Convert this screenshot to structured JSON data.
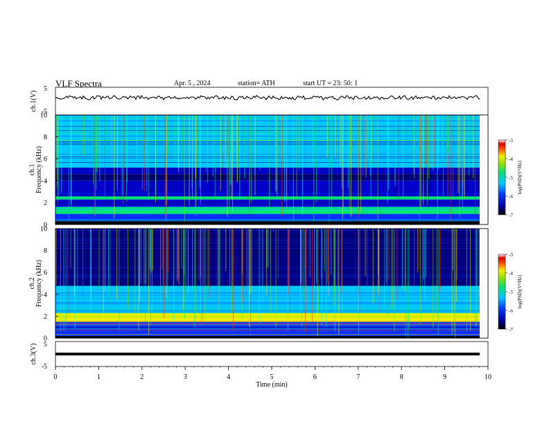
{
  "header": {
    "title": "VLF Spectra",
    "date": "Apr. 5 , 2024",
    "station": "station= ATH",
    "start": "start UT = 23: 50: 1"
  },
  "chart_data": [
    {
      "type": "line",
      "panel": "ch1-waveform",
      "ylabel": "ch.1(V)",
      "yticks": [
        "5",
        "-5"
      ],
      "ylim": [
        -5,
        5
      ],
      "trace_level": 0,
      "color": "#000000"
    },
    {
      "type": "heatmap",
      "panel": "ch1-spectrogram",
      "ylabel_line1": "ch.1",
      "ylabel_line2": "Frequency (kHz)",
      "yticks": [
        "0",
        "2",
        "4",
        "6",
        "8",
        "10"
      ],
      "ylim": [
        0,
        10
      ],
      "colorbar": {
        "label": "log(PSD)(V²/Hz)",
        "ticks": [
          "-3",
          "-4",
          "-5",
          "-6",
          "-7"
        ],
        "range": [
          -7,
          -3
        ]
      },
      "bands_khz": [
        {
          "range": [
            0,
            0.3
          ],
          "level": "black"
        },
        {
          "range": [
            0.3,
            1.0
          ],
          "level": "mixed"
        },
        {
          "range": [
            1.0,
            1.6
          ],
          "level": "cyan-green"
        },
        {
          "range": [
            1.6,
            2.3
          ],
          "level": "blue"
        },
        {
          "range": [
            2.3,
            2.6
          ],
          "level": "cyan-green"
        },
        {
          "range": [
            2.6,
            4.0
          ],
          "level": "blue"
        },
        {
          "range": [
            4.0,
            4.6
          ],
          "level": "dark-blue"
        },
        {
          "range": [
            4.6,
            5.2
          ],
          "level": "blue"
        },
        {
          "range": [
            5.2,
            10.0
          ],
          "level": "mixed-bright"
        }
      ]
    },
    {
      "type": "heatmap",
      "panel": "ch2-spectrogram",
      "ylabel_line1": "ch.2",
      "ylabel_line2": "Frequency (kHz)",
      "yticks": [
        "0",
        "2",
        "4",
        "6",
        "8",
        "10"
      ],
      "ylim": [
        0,
        10
      ],
      "colorbar": {
        "label": "log(PSD)(V²/Hz)",
        "ticks": [
          "-3",
          "-4",
          "-5",
          "-6",
          "-7"
        ],
        "range": [
          -7,
          -3
        ]
      },
      "bands_khz": [
        {
          "range": [
            0,
            0.2
          ],
          "level": "black"
        },
        {
          "range": [
            0.2,
            1.5
          ],
          "level": "mixed"
        },
        {
          "range": [
            1.5,
            2.3
          ],
          "level": "yellow-green"
        },
        {
          "range": [
            2.3,
            4.3
          ],
          "level": "cyan-blue"
        },
        {
          "range": [
            4.3,
            4.8
          ],
          "level": "cyan"
        },
        {
          "range": [
            4.8,
            10.0
          ],
          "level": "dark-blue"
        }
      ]
    },
    {
      "type": "line",
      "panel": "ch3-waveform",
      "ylabel": "ch.3(V)",
      "yticks": [
        "5",
        "-5"
      ],
      "ylim": [
        -5,
        5
      ],
      "trace_level": -1,
      "color": "#000000",
      "xlabel": "Time (min)",
      "xticks": [
        "0",
        "1",
        "2",
        "3",
        "4",
        "5",
        "6",
        "7",
        "8",
        "9",
        "10"
      ],
      "xlim": [
        0,
        10
      ]
    }
  ]
}
